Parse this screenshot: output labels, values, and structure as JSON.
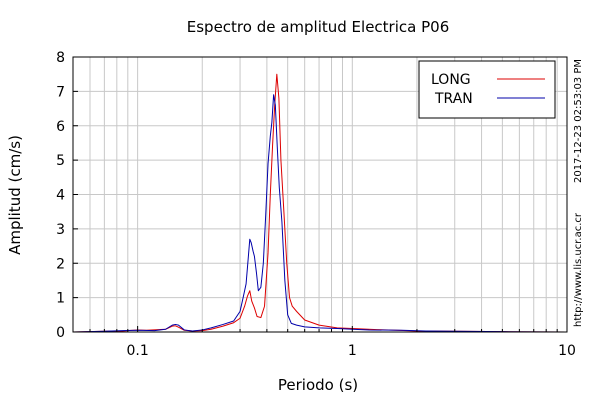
{
  "chart_data": {
    "type": "line",
    "title": "Espectro de amplitud Electrica P06",
    "xlabel": "Periodo (s)",
    "ylabel": "Amplitud (cm/s)",
    "x_scale": "log",
    "xlim": [
      0.05,
      10
    ],
    "ylim": [
      0,
      8
    ],
    "xticks": [
      {
        "value": 0.1,
        "label": "0.1"
      },
      {
        "value": 1,
        "label": "1"
      },
      {
        "value": 10,
        "label": "10"
      }
    ],
    "yticks": [
      0,
      1,
      2,
      3,
      4,
      5,
      6,
      7,
      8
    ],
    "grid": true,
    "legend_position": "top-right",
    "side_text_top": "2017-12-23 02:53:03 PM",
    "side_text_bottom": "http://www.lis.ucr.ac.cr",
    "series": [
      {
        "name": "LONG",
        "color": "#dd0000",
        "points": [
          [
            0.05,
            0.0
          ],
          [
            0.07,
            0.02
          ],
          [
            0.085,
            0.03
          ],
          [
            0.1,
            0.06
          ],
          [
            0.11,
            0.05
          ],
          [
            0.125,
            0.07
          ],
          [
            0.135,
            0.08
          ],
          [
            0.145,
            0.17
          ],
          [
            0.15,
            0.18
          ],
          [
            0.155,
            0.14
          ],
          [
            0.165,
            0.05
          ],
          [
            0.18,
            0.03
          ],
          [
            0.2,
            0.04
          ],
          [
            0.22,
            0.08
          ],
          [
            0.25,
            0.17
          ],
          [
            0.28,
            0.27
          ],
          [
            0.3,
            0.4
          ],
          [
            0.315,
            0.75
          ],
          [
            0.325,
            1.05
          ],
          [
            0.333,
            1.2
          ],
          [
            0.34,
            0.9
          ],
          [
            0.35,
            0.7
          ],
          [
            0.36,
            0.45
          ],
          [
            0.375,
            0.42
          ],
          [
            0.39,
            0.75
          ],
          [
            0.405,
            2.3
          ],
          [
            0.415,
            4.0
          ],
          [
            0.425,
            5.4
          ],
          [
            0.435,
            6.6
          ],
          [
            0.445,
            7.5
          ],
          [
            0.455,
            6.8
          ],
          [
            0.465,
            5.0
          ],
          [
            0.48,
            3.5
          ],
          [
            0.495,
            2.0
          ],
          [
            0.51,
            1.0
          ],
          [
            0.525,
            0.75
          ],
          [
            0.55,
            0.6
          ],
          [
            0.6,
            0.35
          ],
          [
            0.7,
            0.2
          ],
          [
            0.85,
            0.12
          ],
          [
            1.0,
            0.1
          ],
          [
            1.3,
            0.07
          ],
          [
            1.6,
            0.05
          ],
          [
            2.0,
            0.03
          ],
          [
            3.0,
            0.02
          ],
          [
            5.0,
            0.01
          ],
          [
            10.0,
            0.0
          ]
        ]
      },
      {
        "name": "TRAN",
        "color": "#0000aa",
        "points": [
          [
            0.05,
            0.0
          ],
          [
            0.07,
            0.02
          ],
          [
            0.085,
            0.04
          ],
          [
            0.1,
            0.05
          ],
          [
            0.12,
            0.04
          ],
          [
            0.135,
            0.08
          ],
          [
            0.145,
            0.2
          ],
          [
            0.15,
            0.22
          ],
          [
            0.155,
            0.2
          ],
          [
            0.165,
            0.06
          ],
          [
            0.18,
            0.03
          ],
          [
            0.2,
            0.06
          ],
          [
            0.22,
            0.12
          ],
          [
            0.25,
            0.22
          ],
          [
            0.28,
            0.32
          ],
          [
            0.3,
            0.6
          ],
          [
            0.31,
            1.0
          ],
          [
            0.32,
            1.4
          ],
          [
            0.327,
            2.1
          ],
          [
            0.333,
            2.7
          ],
          [
            0.338,
            2.6
          ],
          [
            0.345,
            2.35
          ],
          [
            0.35,
            2.2
          ],
          [
            0.358,
            1.7
          ],
          [
            0.365,
            1.2
          ],
          [
            0.375,
            1.3
          ],
          [
            0.385,
            2.0
          ],
          [
            0.395,
            3.4
          ],
          [
            0.405,
            4.9
          ],
          [
            0.415,
            5.7
          ],
          [
            0.422,
            6.1
          ],
          [
            0.43,
            6.9
          ],
          [
            0.438,
            6.6
          ],
          [
            0.447,
            5.4
          ],
          [
            0.457,
            4.2
          ],
          [
            0.47,
            3.2
          ],
          [
            0.485,
            1.5
          ],
          [
            0.5,
            0.5
          ],
          [
            0.52,
            0.25
          ],
          [
            0.55,
            0.2
          ],
          [
            0.6,
            0.15
          ],
          [
            0.7,
            0.12
          ],
          [
            0.85,
            0.1
          ],
          [
            1.0,
            0.08
          ],
          [
            1.2,
            0.06
          ],
          [
            1.7,
            0.05
          ],
          [
            2.2,
            0.03
          ],
          [
            3.0,
            0.02
          ],
          [
            5.0,
            0.01
          ],
          [
            10.0,
            0.0
          ]
        ]
      }
    ]
  }
}
